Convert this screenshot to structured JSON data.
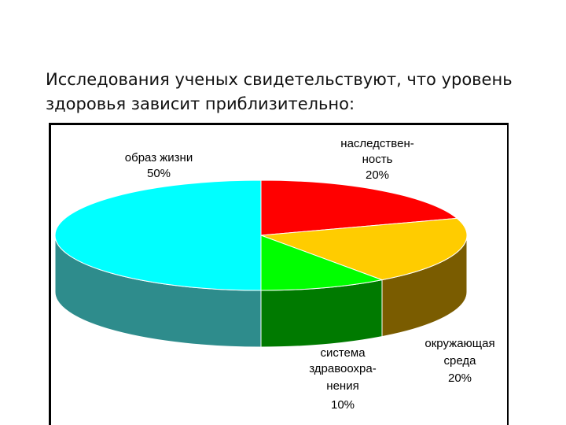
{
  "slide": {
    "line1": "Исследования ученых свидетельствуют, что уровень",
    "line2": "здоровья зависит приблизительно:"
  },
  "chart_data": {
    "type": "pie",
    "style": "3d",
    "slices": [
      {
        "label_lines": [
          "наследствен-",
          "ность"
        ],
        "value_label": "20%",
        "value": 20,
        "color": "#ff0000",
        "side_color": "#c00000"
      },
      {
        "label_lines": [
          "окружающая",
          "среда"
        ],
        "value_label": "20%",
        "value": 20,
        "color": "#ffcc00",
        "side_color": "#7a5c00"
      },
      {
        "label_lines": [
          "система",
          "здравоохра-",
          "нения"
        ],
        "value_label": "10%",
        "value": 10,
        "color": "#00ff00",
        "side_color": "#007a00"
      },
      {
        "label_lines": [
          "образ жизни"
        ],
        "value_label": "50%",
        "value": 50,
        "color": "#00ffff",
        "side_color": "#2e8c8c"
      }
    ]
  }
}
